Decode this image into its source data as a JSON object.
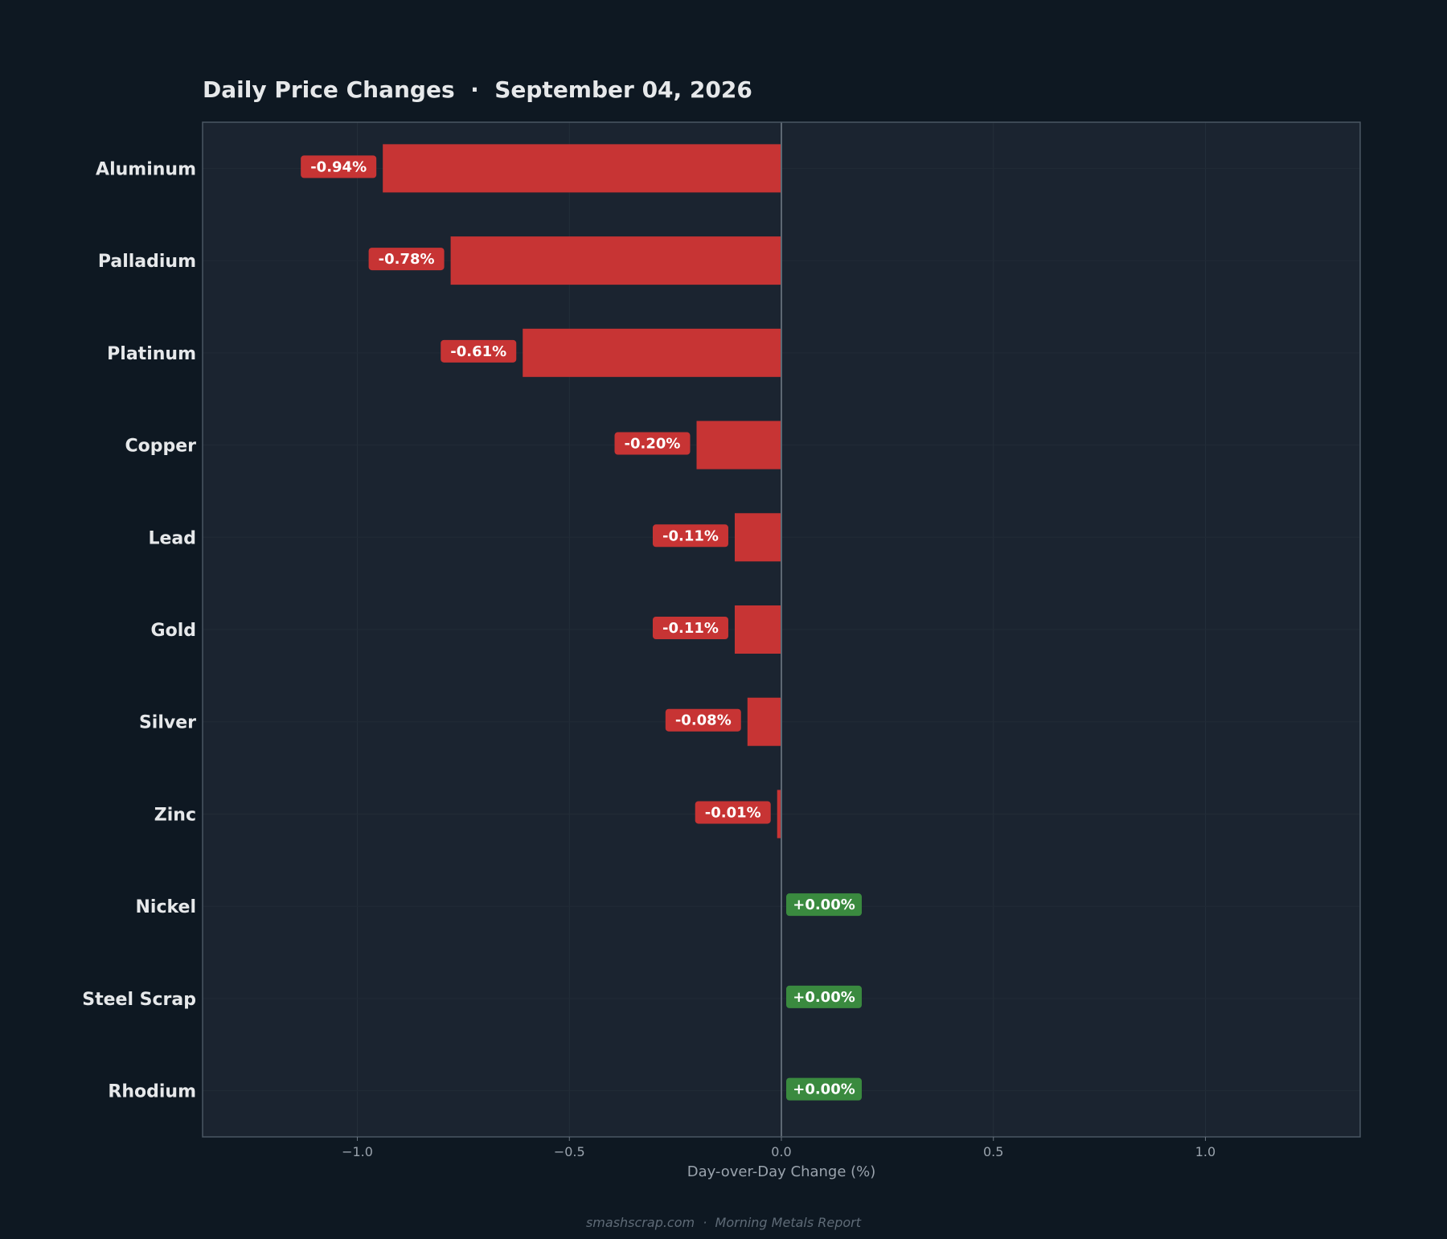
{
  "chart_data": {
    "type": "bar",
    "orientation": "horizontal",
    "title": "Daily Price Changes  ·  September 04, 2026",
    "xlabel": "Day-over-Day Change (%)",
    "ylabel": "",
    "categories": [
      "Aluminum",
      "Palladium",
      "Platinum",
      "Copper",
      "Lead",
      "Gold",
      "Silver",
      "Zinc",
      "Nickel",
      "Steel Scrap",
      "Rhodium"
    ],
    "values": [
      -0.94,
      -0.78,
      -0.61,
      -0.2,
      -0.11,
      -0.11,
      -0.08,
      -0.01,
      0.0,
      0.0,
      0.0
    ],
    "value_labels": [
      "-0.94%",
      "-0.78%",
      "-0.61%",
      "-0.20%",
      "-0.11%",
      "-0.11%",
      "-0.08%",
      "-0.01%",
      "+0.00%",
      "+0.00%",
      "+0.00%"
    ],
    "xlim": [
      -1.365,
      1.365
    ],
    "xticks": [
      -1.0,
      -0.5,
      0.0,
      0.5,
      1.0
    ],
    "xtick_labels": [
      "−1.0",
      "−0.5",
      "0.0",
      "0.5",
      "1.0"
    ],
    "grid": true,
    "colors": {
      "negative": "#c73434",
      "positive": "#3a8a3f",
      "background": "#0e1822",
      "plot_background": "#1b2430",
      "zero_line": "#5d6873"
    }
  },
  "footer": "smashscrap.com  ·  Morning Metals Report"
}
